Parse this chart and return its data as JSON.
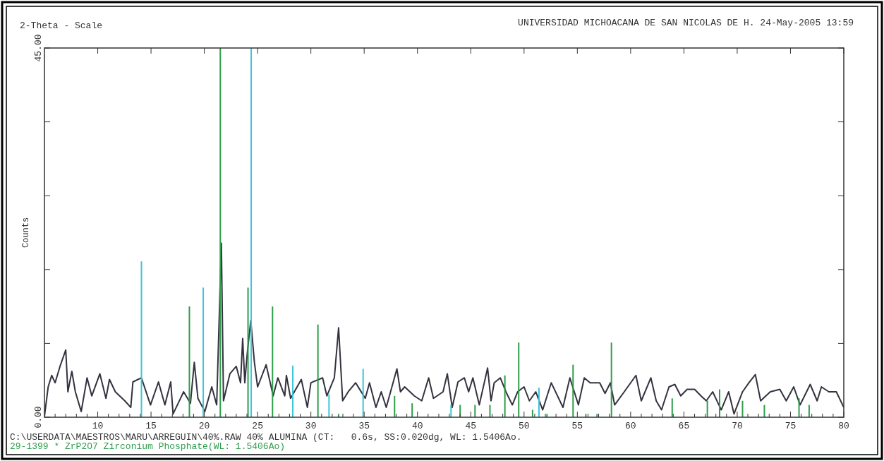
{
  "chart_data": {
    "type": "line",
    "title": "UNIVERSIDAD MICHOACANA DE SAN NICOLAS DE H. 24-May-2005 13:59",
    "xlabel": "2-Theta - Scale",
    "ylabel": "Counts",
    "annotations": [
      "C:\\USERDATA\\MAESTROS\\MARU\\ARREGUIN\\40%.RAW 40% ALUMINA (CT:   0.6s, SS:0.020dg, WL: 1.5406Ao.",
      "29-1399 * ZrP2O7 Zirconium Phosphate(WL: 1.5406Ao)"
    ],
    "xlim": [
      5,
      80
    ],
    "xticks": [
      {
        "value": 6,
        "label": null
      },
      {
        "value": 7,
        "label": null
      },
      {
        "value": 8,
        "label": null
      },
      {
        "value": 9,
        "label": null
      },
      10,
      {
        "value": 11,
        "label": null
      },
      {
        "value": 12,
        "label": null
      },
      {
        "value": 13,
        "label": null
      },
      {
        "value": 14,
        "label": null
      },
      15,
      {
        "value": 16,
        "label": null
      },
      {
        "value": 17,
        "label": null
      },
      {
        "value": 18,
        "label": null
      },
      {
        "value": 19,
        "label": null
      },
      20,
      {
        "value": 21,
        "label": null
      },
      {
        "value": 22,
        "label": null
      },
      {
        "value": 23,
        "label": null
      },
      {
        "value": 24,
        "label": null
      },
      25,
      {
        "value": 26,
        "label": null
      },
      {
        "value": 27,
        "label": null
      },
      {
        "value": 28,
        "label": null
      },
      {
        "value": 29,
        "label": null
      },
      30,
      {
        "value": 31,
        "label": null
      },
      {
        "value": 32,
        "label": null
      },
      {
        "value": 33,
        "label": null
      },
      {
        "value": 34,
        "label": null
      },
      35,
      {
        "value": 36,
        "label": null
      },
      {
        "value": 37,
        "label": null
      },
      {
        "value": 38,
        "label": null
      },
      {
        "value": 39,
        "label": null
      },
      40,
      {
        "value": 41,
        "label": null
      },
      {
        "value": 42,
        "label": null
      },
      {
        "value": 43,
        "label": null
      },
      {
        "value": 44,
        "label": null
      },
      45,
      {
        "value": 46,
        "label": null
      },
      {
        "value": 47,
        "label": null
      },
      {
        "value": 48,
        "label": null
      },
      {
        "value": 49,
        "label": null
      },
      50,
      {
        "value": 51,
        "label": null
      },
      {
        "value": 52,
        "label": null
      },
      {
        "value": 53,
        "label": null
      },
      {
        "value": 54,
        "label": null
      },
      55,
      {
        "value": 56,
        "label": null
      },
      {
        "value": 57,
        "label": null
      },
      {
        "value": 58,
        "label": null
      },
      {
        "value": 59,
        "label": null
      },
      60,
      {
        "value": 61,
        "label": null
      },
      {
        "value": 62,
        "label": null
      },
      {
        "value": 63,
        "label": null
      },
      {
        "value": 64,
        "label": null
      },
      65,
      {
        "value": 66,
        "label": null
      },
      {
        "value": 67,
        "label": null
      },
      {
        "value": 68,
        "label": null
      },
      {
        "value": 69,
        "label": null
      },
      70,
      {
        "value": 71,
        "label": null
      },
      {
        "value": 72,
        "label": null
      },
      {
        "value": 73,
        "label": null
      },
      {
        "value": 74,
        "label": null
      },
      75,
      {
        "value": 76,
        "label": null
      },
      {
        "value": 77,
        "label": null
      },
      {
        "value": 78,
        "label": null
      },
      {
        "value": 79,
        "label": null
      },
      80
    ],
    "ylim": [
      0,
      45
    ],
    "yticks": [
      {
        "value": 0,
        "label": "0.00"
      },
      {
        "value": 9,
        "label": null
      },
      {
        "value": 18,
        "label": null
      },
      {
        "value": 27,
        "label": null
      },
      {
        "value": 36,
        "label": null
      },
      {
        "value": 45,
        "label": "45.00"
      }
    ],
    "grid": false,
    "series": [
      {
        "color": "#333340",
        "x": [
          5.0,
          5.35,
          5.68,
          6.0,
          6.46,
          7.0,
          7.2,
          7.57,
          7.9,
          8.45,
          9.0,
          9.44,
          10.2,
          10.77,
          11.1,
          11.65,
          12.54,
          13.1,
          13.3,
          14.1,
          14.95,
          15.7,
          16.3,
          16.85,
          17.07,
          18.06,
          18.7,
          19.06,
          19.4,
          20.05,
          20.7,
          21.16,
          21.6,
          21.8,
          22.4,
          23.0,
          23.4,
          23.6,
          23.8,
          24.03,
          24.36,
          24.7,
          25.0,
          25.8,
          26.46,
          26.9,
          27.55,
          27.7,
          28.1,
          29.1,
          29.67,
          30.0,
          31.1,
          31.5,
          32.2,
          32.6,
          32.98,
          33.5,
          34.2,
          35.1,
          35.5,
          36.1,
          36.6,
          37.07,
          38.07,
          38.4,
          38.8,
          39.7,
          40.4,
          41.05,
          41.5,
          42.4,
          42.8,
          43.26,
          43.8,
          44.4,
          44.8,
          45.2,
          45.8,
          46.58,
          46.9,
          47.2,
          47.77,
          48.3,
          48.9,
          49.4,
          50.0,
          50.5,
          51.1,
          51.75,
          52.55,
          53.65,
          54.3,
          55.1,
          55.65,
          56.2,
          57.1,
          57.6,
          58.1,
          58.5,
          59.4,
          60.5,
          61.0,
          61.9,
          62.4,
          62.9,
          63.6,
          64.15,
          64.7,
          65.3,
          66.0,
          66.6,
          67.1,
          67.7,
          68.5,
          69.2,
          69.7,
          70.5,
          71.1,
          71.7,
          72.2,
          73.1,
          74.0,
          74.6,
          75.3,
          75.9,
          76.85,
          77.5,
          77.9,
          78.6,
          79.3,
          80.0
        ],
        "values": [
          0.1,
          3.7,
          5.1,
          4.2,
          6.2,
          8.2,
          3.1,
          5.6,
          3.1,
          0.7,
          4.8,
          2.6,
          5.3,
          2.3,
          4.6,
          3.1,
          2.0,
          1.2,
          4.3,
          4.8,
          1.5,
          4.3,
          1.5,
          4.3,
          0.4,
          3.1,
          1.7,
          6.7,
          2.3,
          0.7,
          3.7,
          1.5,
          21.2,
          2.0,
          5.3,
          6.2,
          4.2,
          9.6,
          4.2,
          7.8,
          11.8,
          6.7,
          3.7,
          6.4,
          2.6,
          4.8,
          2.6,
          5.1,
          2.3,
          4.6,
          1.2,
          4.2,
          4.8,
          2.6,
          4.8,
          10.9,
          2.0,
          3.1,
          4.2,
          2.3,
          4.2,
          1.2,
          3.1,
          1.2,
          5.9,
          3.1,
          3.7,
          2.6,
          2.0,
          4.8,
          2.3,
          3.1,
          5.3,
          1.2,
          4.3,
          4.8,
          3.1,
          4.8,
          1.5,
          6.0,
          2.0,
          4.2,
          4.8,
          3.1,
          1.5,
          3.1,
          3.7,
          2.0,
          3.1,
          0.9,
          4.2,
          1.2,
          4.8,
          1.5,
          4.8,
          4.2,
          4.2,
          2.9,
          4.2,
          1.5,
          3.1,
          5.1,
          2.0,
          4.8,
          2.0,
          0.9,
          3.7,
          4.0,
          2.6,
          3.4,
          3.4,
          2.6,
          2.0,
          3.1,
          0.9,
          3.1,
          0.4,
          3.1,
          4.2,
          5.2,
          2.0,
          3.1,
          3.4,
          2.0,
          3.7,
          1.5,
          4.0,
          2.0,
          3.7,
          3.1,
          3.1,
          1.2
        ]
      },
      {
        "type": "bar",
        "color": "#2f9e4c",
        "x": [
          18.6,
          21.5,
          24.1,
          26.4,
          30.66,
          32.6,
          37.85,
          39.5,
          44.0,
          45.4,
          46.8,
          48.2,
          49.5,
          50.8,
          52.15,
          54.6,
          55.8,
          56.85,
          58.2,
          63.9,
          67.2,
          68.35,
          70.5,
          72.55,
          75.8,
          76.75
        ],
        "values": [
          13.5,
          45,
          15.8,
          13.5,
          11.3,
          0.4,
          2.6,
          1.7,
          1.5,
          1.5,
          1.5,
          5.1,
          9.1,
          0.9,
          0.4,
          6.4,
          0.4,
          0.4,
          9.1,
          2.3,
          2.0,
          3.4,
          2.0,
          1.5,
          2.3,
          1.5
        ]
      },
      {
        "type": "bar",
        "color": "#3cc6d8",
        "x": [
          14.1,
          19.9,
          24.4,
          28.3,
          31.7,
          34.9,
          43.15,
          51.4
        ],
        "values": [
          19.0,
          15.8,
          45,
          6.3,
          2.8,
          5.9,
          1.5,
          3.6
        ]
      }
    ]
  }
}
